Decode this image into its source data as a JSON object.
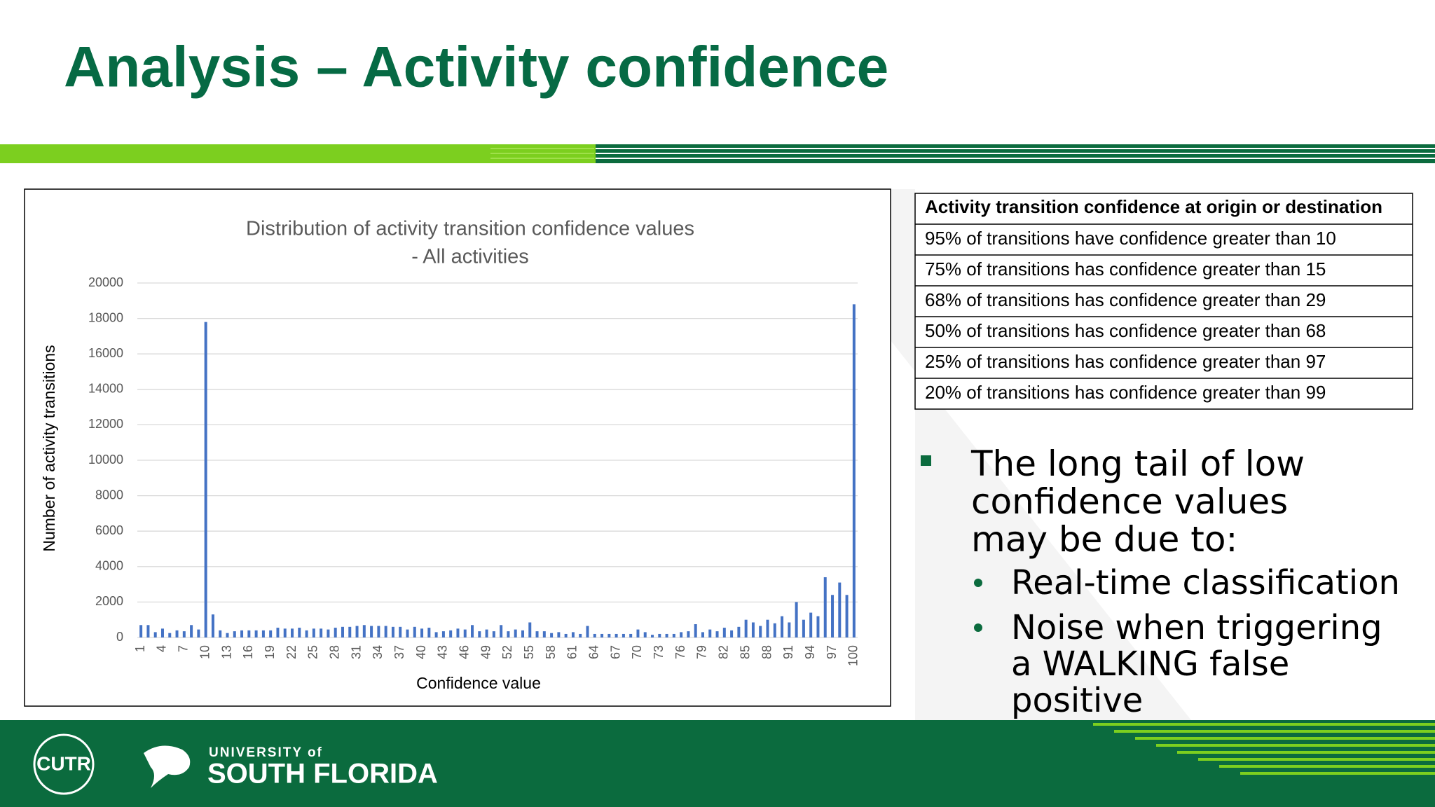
{
  "header": {
    "title": "Analysis – Activity confidence"
  },
  "chart_data": {
    "type": "bar",
    "title": [
      "Distribution of activity transition confidence values",
      "- All activities"
    ],
    "ylabel": "Number of activity transitions",
    "xlabel": "Confidence value",
    "categories": [
      1,
      null,
      null,
      4,
      null,
      null,
      7,
      null,
      null,
      10,
      null,
      null,
      13,
      null,
      null,
      16,
      null,
      null,
      19,
      null,
      null,
      22,
      null,
      null,
      25,
      null,
      null,
      28,
      null,
      null,
      31,
      null,
      null,
      34,
      null,
      null,
      37,
      null,
      null,
      40,
      null,
      null,
      43,
      null,
      null,
      46,
      null,
      null,
      49,
      null,
      null,
      52,
      null,
      null,
      55,
      null,
      null,
      58,
      null,
      null,
      61,
      null,
      null,
      64,
      null,
      null,
      67,
      null,
      null,
      70,
      null,
      null,
      73,
      null,
      null,
      76,
      null,
      null,
      79,
      null,
      null,
      82,
      null,
      null,
      85,
      null,
      null,
      88,
      null,
      null,
      91,
      null,
      null,
      94,
      null,
      null,
      97,
      null,
      null,
      100
    ],
    "values": [
      700,
      700,
      300,
      500,
      250,
      400,
      350,
      700,
      450,
      17800,
      1300,
      400,
      250,
      350,
      400,
      400,
      400,
      400,
      400,
      550,
      500,
      500,
      550,
      400,
      500,
      500,
      450,
      550,
      600,
      600,
      650,
      700,
      650,
      650,
      650,
      600,
      600,
      450,
      600,
      500,
      550,
      300,
      350,
      400,
      500,
      450,
      700,
      350,
      450,
      350,
      700,
      350,
      450,
      400,
      850,
      350,
      350,
      250,
      300,
      200,
      300,
      200,
      650,
      200,
      200,
      200,
      200,
      200,
      200,
      450,
      300,
      150,
      200,
      200,
      200,
      300,
      350,
      750,
      300,
      450,
      350,
      550,
      400,
      600,
      1000,
      850,
      650,
      1000,
      800,
      1200,
      850,
      2000,
      1000,
      1400,
      1200,
      3400,
      2400,
      3100,
      2400,
      18800
    ],
    "color": "#4472c4",
    "ylim": [
      0,
      20000
    ],
    "yticks": [
      0,
      2000,
      4000,
      6000,
      8000,
      10000,
      12000,
      14000,
      16000,
      18000,
      20000
    ],
    "grid": true
  },
  "table": {
    "header": "Activity transition confidence at origin or destination",
    "rows": [
      "95% of transitions have confidence greater than 10",
      "75% of transitions has confidence greater than 15",
      "68% of transitions has confidence greater than 29",
      "50% of transitions has confidence greater than 68",
      "25% of transitions has confidence greater than 97",
      "20% of transitions has confidence greater than 99"
    ]
  },
  "bullets": {
    "text": "The long tail of low confidence values may be due to:",
    "sub": [
      "Real-time classification",
      "Noise when triggering a WALKING false positive"
    ]
  },
  "footer": {
    "logo": "CUTR",
    "university": "UNIVERSITY of",
    "name": "SOUTH FLORIDA"
  }
}
